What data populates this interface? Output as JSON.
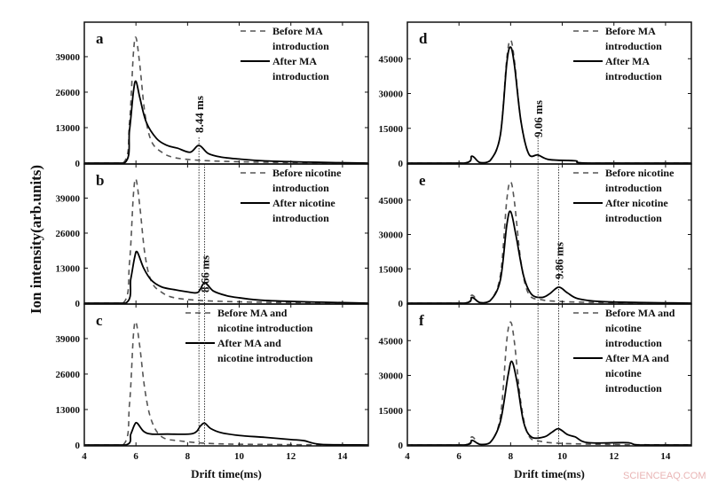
{
  "chart_data": {
    "type": "line",
    "ylabel": "Ion intensity(arb.units)",
    "watermark": "SCIENCEAQ.COM",
    "colors": {
      "before": "#555555",
      "after": "#000000"
    },
    "panels": [
      {
        "label": "a",
        "column": "left",
        "xlabel": "",
        "xlim": [
          4,
          15
        ],
        "ylim": [
          0,
          51000
        ],
        "xticks": [
          4,
          6,
          8,
          10,
          12,
          14
        ],
        "yticks": [
          0,
          13000,
          26000,
          39000
        ],
        "legend": [
          {
            "style": "dashed",
            "lines": [
              "Before MA",
              "introduction"
            ]
          },
          {
            "style": "solid",
            "lines": [
              "After MA",
              "introduction"
            ]
          }
        ],
        "annotations": [
          {
            "text": "8.44 ms",
            "x": 8.44
          }
        ],
        "series": [
          {
            "name": "Before MA introduction",
            "style": "dashed",
            "x": [
              4,
              5.5,
              5.75,
              5.9,
              6.0,
              6.15,
              6.35,
              6.6,
              7.0,
              7.5,
              8.5,
              10,
              12,
              15
            ],
            "y": [
              0,
              0,
              15000,
              40000,
              46000,
              36000,
              18000,
              8000,
              4000,
              2000,
              1000,
              500,
              200,
              0
            ]
          },
          {
            "name": "After MA introduction",
            "style": "solid",
            "x": [
              4,
              5.55,
              5.75,
              5.9,
              6.0,
              6.15,
              6.4,
              6.8,
              7.2,
              7.6,
              8.1,
              8.44,
              8.8,
              9.3,
              10,
              11,
              13,
              15
            ],
            "y": [
              0,
              0,
              12000,
              26000,
              30000,
              24000,
              15000,
              9000,
              6500,
              5500,
              4000,
              6500,
              3500,
              2200,
              1500,
              800,
              300,
              0
            ]
          }
        ]
      },
      {
        "label": "b",
        "column": "left",
        "xlabel": "",
        "xlim": [
          4,
          15
        ],
        "ylim": [
          0,
          51000
        ],
        "xticks": [
          4,
          6,
          8,
          10,
          12,
          14
        ],
        "yticks": [
          0,
          13000,
          26000,
          39000
        ],
        "legend": [
          {
            "style": "dashed",
            "lines": [
              "Before nicotine",
              "introduction"
            ]
          },
          {
            "style": "solid",
            "lines": [
              "After nicotine",
              "introduction"
            ]
          }
        ],
        "annotations": [
          {
            "text": "8.66 ms",
            "x": 8.66
          }
        ],
        "series": [
          {
            "name": "Before nicotine introduction",
            "style": "dashed",
            "x": [
              4,
              5.5,
              5.75,
              5.9,
              6.0,
              6.15,
              6.35,
              6.6,
              7.0,
              7.5,
              8.5,
              10,
              12,
              15
            ],
            "y": [
              0,
              0,
              15000,
              40000,
              46000,
              36000,
              18000,
              8000,
              4000,
              2000,
              1000,
              500,
              200,
              0
            ]
          },
          {
            "name": "After nicotine introduction",
            "style": "solid",
            "x": [
              4,
              5.6,
              5.8,
              5.95,
              6.05,
              6.3,
              6.6,
              7.0,
              7.5,
              8.0,
              8.4,
              8.66,
              9.0,
              9.5,
              10,
              11,
              13,
              15
            ],
            "y": [
              0,
              0,
              9000,
              17000,
              19000,
              13000,
              8500,
              6000,
              5000,
              4200,
              4000,
              7500,
              4500,
              2800,
              2000,
              1000,
              400,
              0
            ]
          }
        ]
      },
      {
        "label": "c",
        "column": "left",
        "xlabel": "Drift time(ms)",
        "xlim": [
          4,
          15
        ],
        "ylim": [
          0,
          51000
        ],
        "xticks": [
          4,
          6,
          8,
          10,
          12,
          14
        ],
        "yticks": [
          0,
          13000,
          26000,
          39000
        ],
        "legend": [
          {
            "style": "dashed",
            "lines": [
              "Before MA and",
              "nicotine introduction"
            ]
          },
          {
            "style": "solid",
            "lines": [
              "After MA and",
              "nicotine introduction"
            ]
          }
        ],
        "annotations": [],
        "series": [
          {
            "name": "Before MA and nicotine introduction",
            "style": "dashed",
            "x": [
              4,
              5.5,
              5.75,
              5.9,
              6.0,
              6.15,
              6.35,
              6.6,
              7.0,
              7.7,
              9,
              11,
              15
            ],
            "y": [
              0,
              0,
              15000,
              40000,
              45000,
              36000,
              20000,
              9000,
              3000,
              1500,
              500,
              200,
              0
            ]
          },
          {
            "name": "After MA and nicotine introduction",
            "style": "solid",
            "x": [
              4,
              5.6,
              5.8,
              5.95,
              6.05,
              6.3,
              6.6,
              7.2,
              8.2,
              8.5,
              8.66,
              8.9,
              9.3,
              10,
              11,
              12,
              12.5,
              13.2,
              15
            ],
            "y": [
              0,
              0,
              4000,
              7500,
              8000,
              5000,
              4000,
              4000,
              4200,
              7000,
              8000,
              6000,
              4500,
              3500,
              2800,
              2000,
              1600,
              200,
              0
            ]
          }
        ]
      },
      {
        "label": "d",
        "column": "right",
        "xlabel": "",
        "xlim": [
          4,
          15
        ],
        "ylim": [
          0,
          60000
        ],
        "xticks": [
          4,
          6,
          8,
          10,
          12,
          14
        ],
        "yticks": [
          0,
          15000,
          30000,
          45000
        ],
        "legend": [
          {
            "style": "dashed",
            "lines": [
              "Before MA",
              "introduction"
            ]
          },
          {
            "style": "solid",
            "lines": [
              "After MA",
              "introduction"
            ]
          }
        ],
        "annotations": [
          {
            "text": "9.06 ms",
            "x": 9.06
          }
        ],
        "series": [
          {
            "name": "Before MA introduction",
            "style": "dashed",
            "x": [
              4,
              6.2,
              6.5,
              6.8,
              7.2,
              7.6,
              7.85,
              8.0,
              8.15,
              8.4,
              8.7,
              9.06,
              9.5,
              10.5,
              11,
              15
            ],
            "y": [
              0,
              0,
              3000,
              300,
              1000,
              12000,
              45000,
              53000,
              44000,
              18000,
              4000,
              3500,
              1500,
              1000,
              0,
              0
            ]
          },
          {
            "name": "After MA introduction",
            "style": "solid",
            "x": [
              4,
              6.2,
              6.5,
              6.8,
              7.2,
              7.6,
              7.85,
              8.0,
              8.15,
              8.4,
              8.7,
              9.06,
              9.5,
              10.5,
              11,
              15
            ],
            "y": [
              0,
              0,
              3000,
              300,
              1000,
              12000,
              43000,
              50000,
              42000,
              18000,
              4000,
              3500,
              1500,
              1000,
              0,
              0
            ]
          }
        ]
      },
      {
        "label": "e",
        "column": "right",
        "xlabel": "",
        "xlim": [
          4,
          15
        ],
        "ylim": [
          0,
          60000
        ],
        "xticks": [
          4,
          6,
          8,
          10,
          12,
          14
        ],
        "yticks": [
          0,
          15000,
          30000,
          45000
        ],
        "legend": [
          {
            "style": "dashed",
            "lines": [
              "Before nicotine",
              "introduction"
            ]
          },
          {
            "style": "solid",
            "lines": [
              "After nicotine",
              "introduction"
            ]
          }
        ],
        "annotations": [
          {
            "text": "9.86 ms",
            "x": 9.86
          }
        ],
        "series": [
          {
            "name": "Before nicotine introduction",
            "style": "dashed",
            "x": [
              4,
              6.2,
              6.5,
              6.8,
              7.2,
              7.6,
              7.85,
              8.0,
              8.15,
              8.4,
              8.7,
              9.2,
              9.8,
              10.5,
              12,
              15
            ],
            "y": [
              0,
              0,
              3500,
              300,
              1000,
              12000,
              45000,
              53000,
              44000,
              18000,
              4000,
              1500,
              800,
              500,
              200,
              0
            ]
          },
          {
            "name": "After nicotine introduction",
            "style": "solid",
            "x": [
              4,
              6.2,
              6.5,
              6.8,
              7.2,
              7.6,
              7.85,
              8.0,
              8.2,
              8.5,
              8.8,
              9.2,
              9.5,
              9.86,
              10.2,
              10.6,
              11.5,
              13,
              15
            ],
            "y": [
              0,
              0,
              2500,
              300,
              1000,
              10000,
              34000,
              40000,
              30000,
              12000,
              4000,
              2500,
              4000,
              7000,
              4500,
              2000,
              700,
              300,
              0
            ]
          }
        ]
      },
      {
        "label": "f",
        "column": "right",
        "xlabel": "Drift time(ms)",
        "xlim": [
          4,
          15
        ],
        "ylim": [
          0,
          60000
        ],
        "xticks": [
          4,
          6,
          8,
          10,
          12,
          14
        ],
        "yticks": [
          0,
          15000,
          30000,
          45000
        ],
        "legend": [
          {
            "style": "dashed",
            "lines": [
              "Before MA and",
              "nicotine",
              "introduction"
            ]
          },
          {
            "style": "solid",
            "lines": [
              "After MA and",
              "nicotine",
              "introduction"
            ]
          }
        ],
        "annotations": [],
        "series": [
          {
            "name": "Before MA and nicotine introduction",
            "style": "dashed",
            "x": [
              4,
              6.2,
              6.5,
              6.8,
              7.2,
              7.6,
              7.85,
              8.0,
              8.15,
              8.4,
              8.7,
              9.2,
              9.8,
              10.5,
              12,
              15
            ],
            "y": [
              0,
              0,
              3500,
              300,
              1000,
              12000,
              45000,
              53000,
              44000,
              18000,
              4000,
              1500,
              800,
              500,
              200,
              0
            ]
          },
          {
            "name": "After MA and nicotine introduction",
            "style": "solid",
            "x": [
              4,
              6.2,
              6.5,
              6.8,
              7.2,
              7.6,
              7.9,
              8.05,
              8.25,
              8.5,
              8.8,
              9.3,
              9.6,
              9.86,
              10.2,
              10.5,
              11,
              12.5,
              13,
              15
            ],
            "y": [
              0,
              0,
              2000,
              300,
              1000,
              10000,
              30000,
              36000,
              27000,
              10000,
              3500,
              3500,
              5500,
              7000,
              4500,
              3500,
              1000,
              1000,
              0,
              0
            ]
          }
        ]
      }
    ],
    "reference_lines": {
      "left": [
        {
          "x": 8.44,
          "panels": [
            "a",
            "b",
            "c"
          ]
        },
        {
          "x": 8.66,
          "panels": [
            "b",
            "c"
          ]
        }
      ],
      "right": [
        {
          "x": 9.06,
          "panels": [
            "d",
            "e",
            "f"
          ]
        },
        {
          "x": 9.86,
          "panels": [
            "e",
            "f"
          ]
        }
      ]
    }
  }
}
